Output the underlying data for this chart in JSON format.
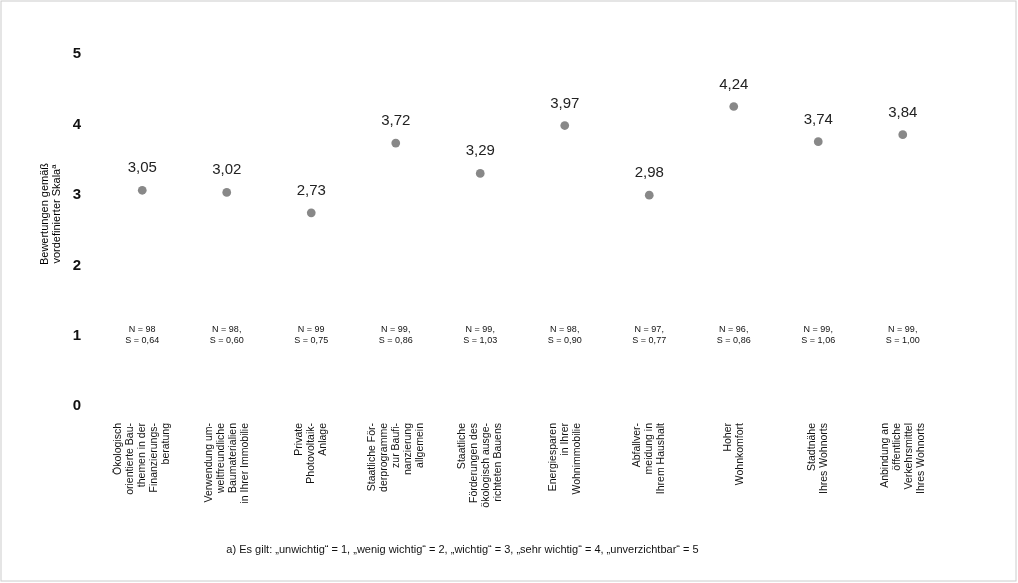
{
  "chart_data": {
    "type": "scatter",
    "ylabel": "Bewertungen gemäß\nvordefinierter Skala$^{a}$",
    "categories": [
      "Ökologisch\norientierte Bau-\nthemen in der\nFinanzierungs-\nberatung",
      "Verwendung um-\nweltfreundliche\nBaumaterialien\nin Ihrer Immobilie",
      "Private\nPhotovoltaik-\nAnlage",
      "Staatliche För-\nderprogramme\nzur Baufi-\nnanzierung\nallgemein",
      "Staatliche\nFörderungen des\nökologisch ausge-\nrichteten Bauens",
      "Energiesparen\nin Ihrer\nWohnimmobilie",
      "Abfallver-\nmeidung in\nIhrem  Haushalt",
      "Hoher\nWohnkomfort",
      "Stadtnähe\nIhres Wohnorts",
      "Anbindung an\nöffentliche\nVerkehrsmittel\nIhres Wohnorts"
    ],
    "values": [
      3.05,
      3.02,
      2.73,
      3.72,
      3.29,
      3.97,
      2.98,
      4.24,
      3.74,
      3.84
    ],
    "value_labels": [
      "3,05",
      "3,02",
      "2,73",
      "3,72",
      "3,29",
      "3,97",
      "2,98",
      "4,24",
      "3,74",
      "3,84"
    ],
    "color": "#888888",
    "marker": "circle",
    "ylim": [
      0,
      5
    ],
    "yticks": [
      0,
      1,
      2,
      3,
      4,
      5
    ],
    "grid": false,
    "annotations": [
      "N = 98\nS = 0,64",
      "N = 98,\nS = 0,60",
      "N = 99\nS = 0,75",
      "N = 99,\nS = 0,86",
      "N = 99,\nS = 1,03",
      "N = 98,\nS = 0,90",
      "N = 97,\nS = 0,77",
      "N = 96,\nS = 0,86",
      "N = 99,\nS = 1,06",
      "N = 99,\nS = 1,00",
      "a) Es gilt: „unwichtig“ = 1, „wenig wichtig“ = 2, „wichtig“ = 3, „sehr wichtig“ = 4, „unverzichtbar“ = 5"
    ]
  }
}
